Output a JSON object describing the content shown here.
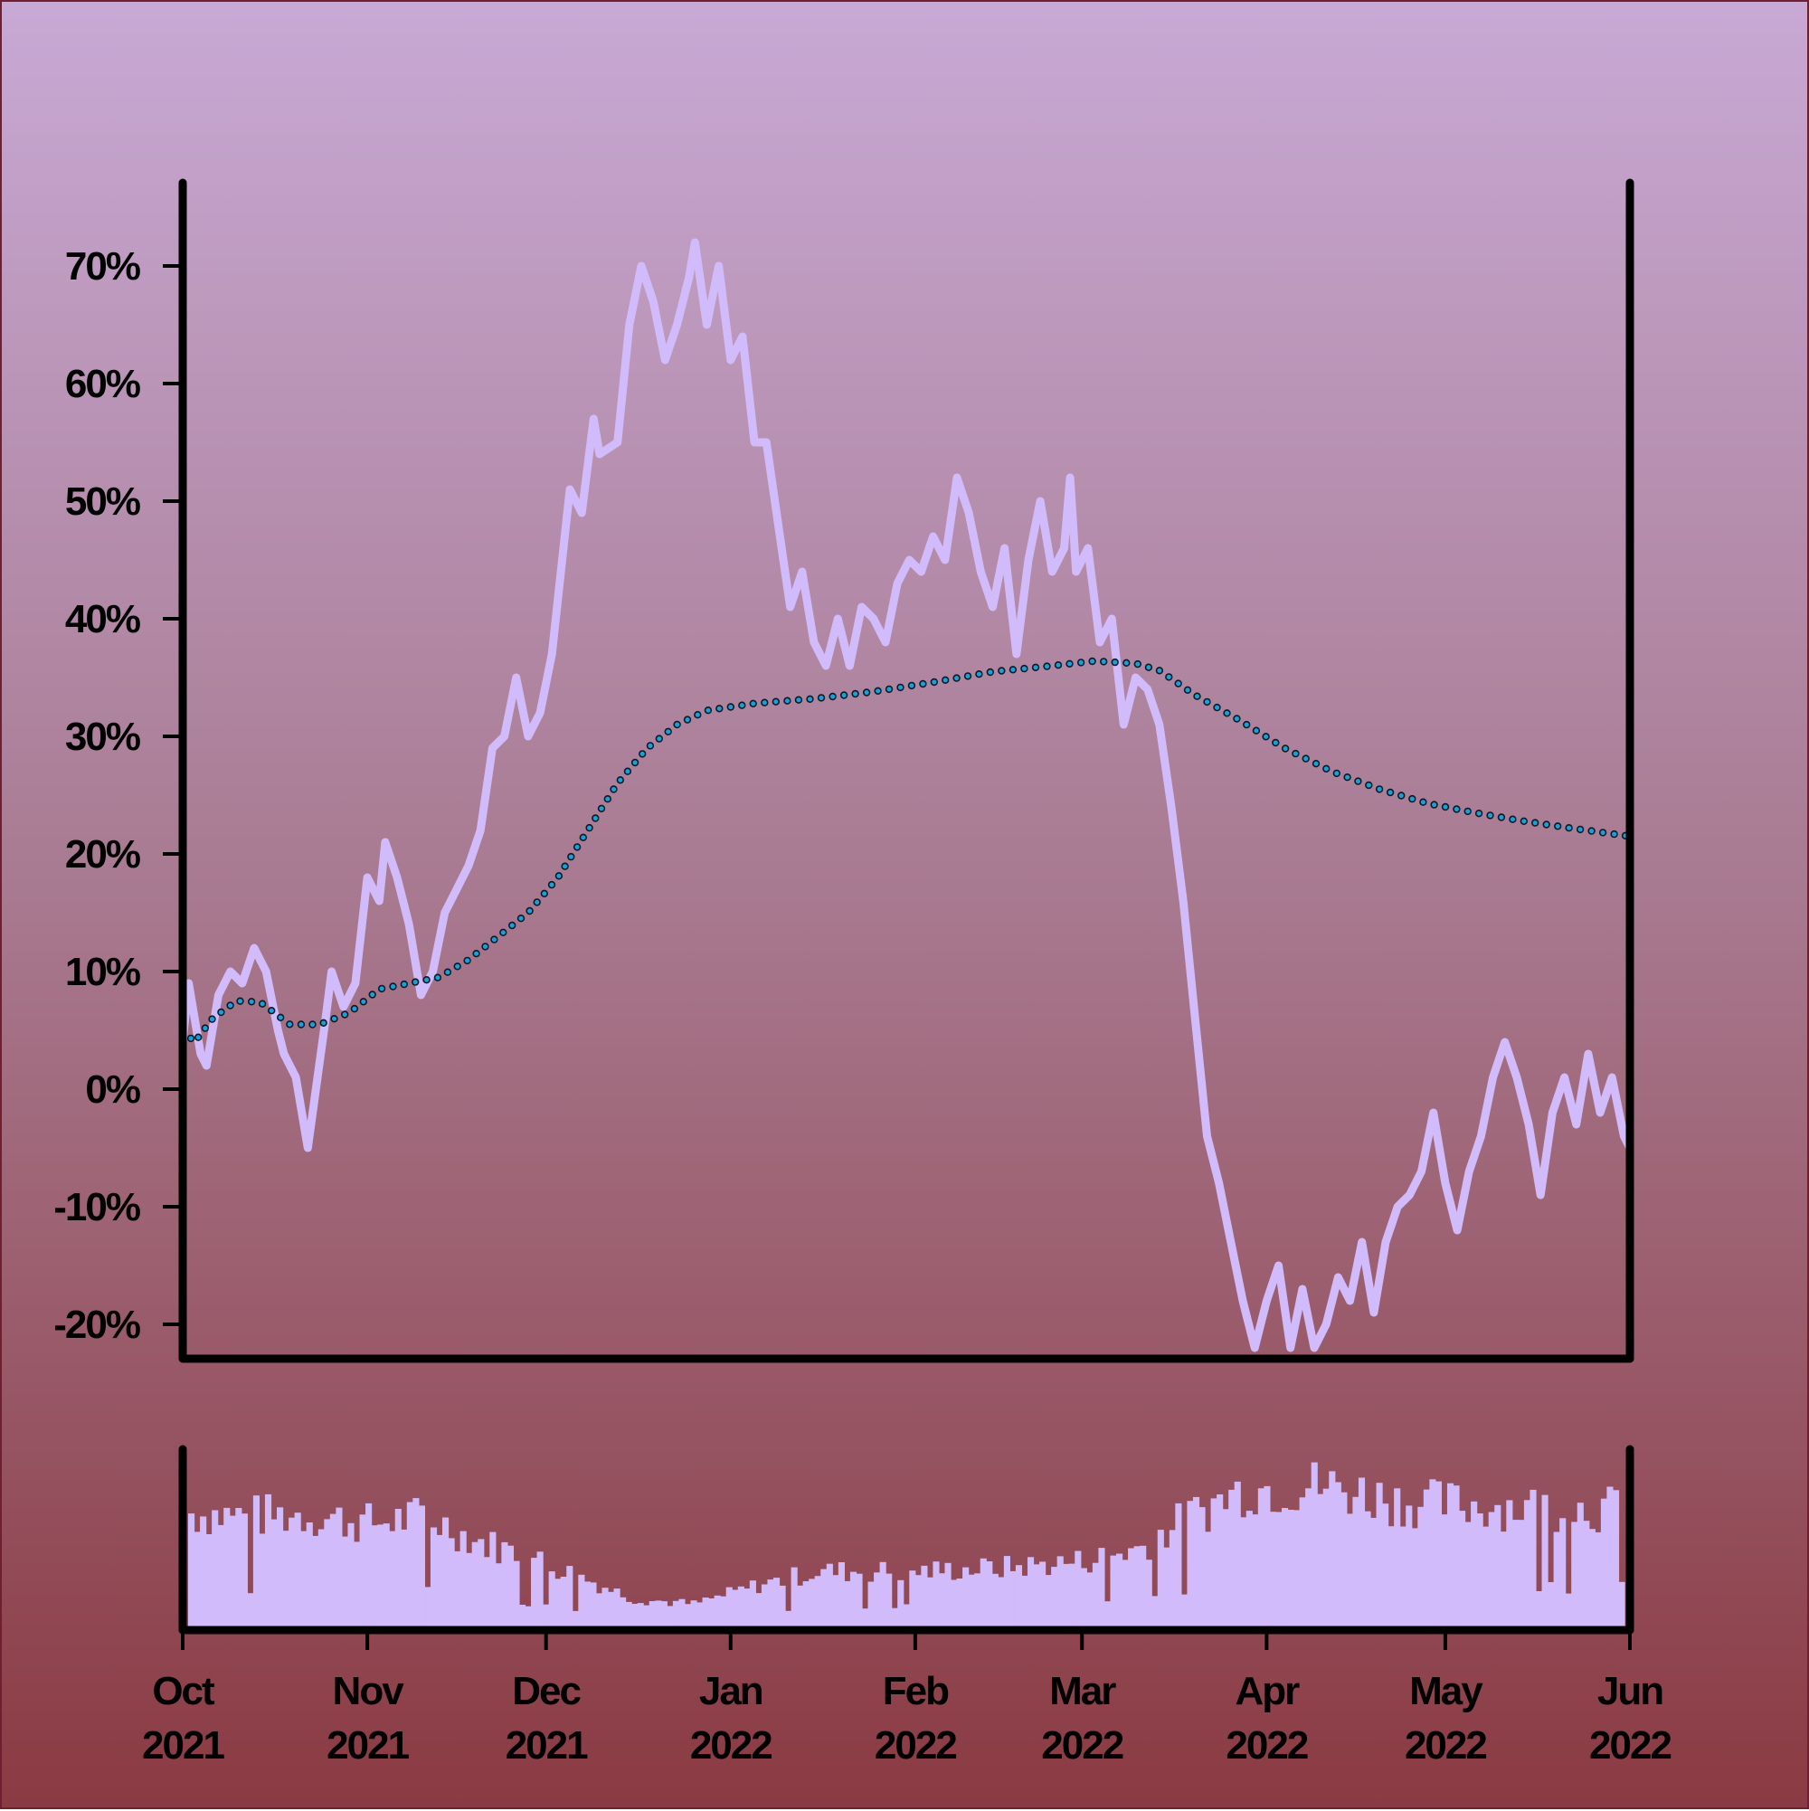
{
  "chart_data": [
    {
      "type": "line",
      "title": "",
      "xlabel": "",
      "ylabel": "",
      "x_range": [
        "2021-10-01",
        "2022-06-01"
      ],
      "ylim": [
        -22,
        77
      ],
      "y_ticks": [
        {
          "value": 70,
          "label": "70%"
        },
        {
          "value": 60,
          "label": "60%"
        },
        {
          "value": 50,
          "label": "50%"
        },
        {
          "value": 40,
          "label": "40%"
        },
        {
          "value": 30,
          "label": "30%"
        },
        {
          "value": 20,
          "label": "20%"
        },
        {
          "value": 10,
          "label": "10%"
        },
        {
          "value": 0,
          "label": "0%"
        },
        {
          "value": -10,
          "label": "-10%"
        },
        {
          "value": -20,
          "label": "-20%"
        }
      ],
      "grid": false,
      "series": [
        {
          "style": "solid",
          "color": "#d2bbfb",
          "points": [
            [
              "2021-10-01",
              4
            ],
            [
              "2021-10-02",
              9
            ],
            [
              "2021-10-03",
              6
            ],
            [
              "2021-10-04",
              3
            ],
            [
              "2021-10-05",
              2
            ],
            [
              "2021-10-07",
              8
            ],
            [
              "2021-10-09",
              10
            ],
            [
              "2021-10-11",
              9
            ],
            [
              "2021-10-13",
              12
            ],
            [
              "2021-10-15",
              10
            ],
            [
              "2021-10-17",
              5
            ],
            [
              "2021-10-18",
              3
            ],
            [
              "2021-10-20",
              1
            ],
            [
              "2021-10-22",
              -5
            ],
            [
              "2021-10-25",
              6
            ],
            [
              "2021-10-26",
              10
            ],
            [
              "2021-10-28",
              7
            ],
            [
              "2021-10-30",
              9
            ],
            [
              "2021-11-01",
              18
            ],
            [
              "2021-11-03",
              16
            ],
            [
              "2021-11-04",
              21
            ],
            [
              "2021-11-06",
              18
            ],
            [
              "2021-11-08",
              14
            ],
            [
              "2021-11-10",
              8
            ],
            [
              "2021-11-12",
              10
            ],
            [
              "2021-11-14",
              15
            ],
            [
              "2021-11-16",
              17
            ],
            [
              "2021-11-18",
              19
            ],
            [
              "2021-11-20",
              22
            ],
            [
              "2021-11-22",
              29
            ],
            [
              "2021-11-24",
              30
            ],
            [
              "2021-11-26",
              35
            ],
            [
              "2021-11-28",
              30
            ],
            [
              "2021-11-30",
              32
            ],
            [
              "2021-12-02",
              37
            ],
            [
              "2021-12-05",
              51
            ],
            [
              "2021-12-07",
              49
            ],
            [
              "2021-12-09",
              57
            ],
            [
              "2021-12-10",
              54
            ],
            [
              "2021-12-13",
              55
            ],
            [
              "2021-12-15",
              65
            ],
            [
              "2021-12-17",
              70
            ],
            [
              "2021-12-19",
              67
            ],
            [
              "2021-12-21",
              62
            ],
            [
              "2021-12-23",
              65
            ],
            [
              "2021-12-25",
              69
            ],
            [
              "2021-12-26",
              72
            ],
            [
              "2021-12-28",
              65
            ],
            [
              "2021-12-30",
              70
            ],
            [
              "2022-01-01",
              62
            ],
            [
              "2022-01-03",
              64
            ],
            [
              "2022-01-05",
              55
            ],
            [
              "2022-01-07",
              55
            ],
            [
              "2022-01-09",
              48
            ],
            [
              "2022-01-11",
              41
            ],
            [
              "2022-01-13",
              44
            ],
            [
              "2022-01-15",
              38
            ],
            [
              "2022-01-17",
              36
            ],
            [
              "2022-01-19",
              40
            ],
            [
              "2022-01-21",
              36
            ],
            [
              "2022-01-23",
              41
            ],
            [
              "2022-01-25",
              40
            ],
            [
              "2022-01-27",
              38
            ],
            [
              "2022-01-29",
              43
            ],
            [
              "2022-01-31",
              45
            ],
            [
              "2022-02-02",
              44
            ],
            [
              "2022-02-04",
              47
            ],
            [
              "2022-02-06",
              45
            ],
            [
              "2022-02-08",
              52
            ],
            [
              "2022-02-10",
              49
            ],
            [
              "2022-02-12",
              44
            ],
            [
              "2022-02-14",
              41
            ],
            [
              "2022-02-16",
              46
            ],
            [
              "2022-02-18",
              37
            ],
            [
              "2022-02-20",
              45
            ],
            [
              "2022-02-22",
              50
            ],
            [
              "2022-02-24",
              44
            ],
            [
              "2022-02-26",
              46
            ],
            [
              "2022-02-27",
              52
            ],
            [
              "2022-02-28",
              44
            ],
            [
              "2022-03-02",
              46
            ],
            [
              "2022-03-04",
              38
            ],
            [
              "2022-03-06",
              40
            ],
            [
              "2022-03-08",
              31
            ],
            [
              "2022-03-10",
              35
            ],
            [
              "2022-03-12",
              34
            ],
            [
              "2022-03-14",
              31
            ],
            [
              "2022-03-16",
              24
            ],
            [
              "2022-03-18",
              16
            ],
            [
              "2022-03-20",
              6
            ],
            [
              "2022-03-22",
              -4
            ],
            [
              "2022-03-24",
              -8
            ],
            [
              "2022-03-26",
              -13
            ],
            [
              "2022-03-28",
              -18
            ],
            [
              "2022-03-30",
              -22
            ],
            [
              "2022-04-01",
              -18
            ],
            [
              "2022-04-03",
              -15
            ],
            [
              "2022-04-05",
              -22
            ],
            [
              "2022-04-07",
              -17
            ],
            [
              "2022-04-09",
              -22
            ],
            [
              "2022-04-11",
              -20
            ],
            [
              "2022-04-13",
              -16
            ],
            [
              "2022-04-15",
              -18
            ],
            [
              "2022-04-17",
              -13
            ],
            [
              "2022-04-19",
              -19
            ],
            [
              "2022-04-21",
              -13
            ],
            [
              "2022-04-23",
              -10
            ],
            [
              "2022-04-25",
              -9
            ],
            [
              "2022-04-27",
              -7
            ],
            [
              "2022-04-29",
              -2
            ],
            [
              "2022-05-01",
              -8
            ],
            [
              "2022-05-03",
              -12
            ],
            [
              "2022-05-05",
              -7
            ],
            [
              "2022-05-07",
              -4
            ],
            [
              "2022-05-09",
              1
            ],
            [
              "2022-05-11",
              4
            ],
            [
              "2022-05-13",
              1
            ],
            [
              "2022-05-15",
              -3
            ],
            [
              "2022-05-17",
              -9
            ],
            [
              "2022-05-19",
              -2
            ],
            [
              "2022-05-21",
              1
            ],
            [
              "2022-05-23",
              -3
            ],
            [
              "2022-05-25",
              3
            ],
            [
              "2022-05-27",
              -2
            ],
            [
              "2022-05-29",
              1
            ],
            [
              "2022-05-31",
              -4
            ],
            [
              "2022-06-01",
              -5
            ]
          ]
        },
        {
          "style": "dotted",
          "color": "#1aa0d8",
          "points": [
            [
              "2021-10-01",
              5
            ],
            [
              "2021-10-03",
              4
            ],
            [
              "2021-10-06",
              6
            ],
            [
              "2021-10-10",
              7.5
            ],
            [
              "2021-10-14",
              7.4
            ],
            [
              "2021-10-19",
              5.5
            ],
            [
              "2021-10-24",
              5.5
            ],
            [
              "2021-10-29",
              6.5
            ],
            [
              "2021-11-03",
              8.5
            ],
            [
              "2021-11-08",
              9
            ],
            [
              "2021-11-13",
              9.5
            ],
            [
              "2021-11-18",
              11
            ],
            [
              "2021-11-23",
              13
            ],
            [
              "2021-11-28",
              15
            ],
            [
              "2021-12-03",
              18
            ],
            [
              "2021-12-08",
              22
            ],
            [
              "2021-12-13",
              26
            ],
            [
              "2021-12-18",
              29
            ],
            [
              "2021-12-23",
              31
            ],
            [
              "2021-12-28",
              32.2
            ],
            [
              "2022-01-05",
              32.8
            ],
            [
              "2022-01-15",
              33.2
            ],
            [
              "2022-01-25",
              33.8
            ],
            [
              "2022-02-04",
              34.6
            ],
            [
              "2022-02-14",
              35.5
            ],
            [
              "2022-02-24",
              36
            ],
            [
              "2022-03-03",
              36.4
            ],
            [
              "2022-03-10",
              36.2
            ],
            [
              "2022-03-14",
              35.6
            ],
            [
              "2022-03-20",
              33.5
            ],
            [
              "2022-03-27",
              31.5
            ],
            [
              "2022-04-04",
              29
            ],
            [
              "2022-04-12",
              27
            ],
            [
              "2022-04-20",
              25.5
            ],
            [
              "2022-04-28",
              24.3
            ],
            [
              "2022-05-06",
              23.5
            ],
            [
              "2022-05-14",
              22.8
            ],
            [
              "2022-05-22",
              22.2
            ],
            [
              "2022-06-01",
              21.5
            ]
          ]
        }
      ]
    },
    {
      "type": "bar",
      "title": "",
      "xlabel": "",
      "ylabel": "",
      "x_range": [
        "2021-10-01",
        "2022-06-01"
      ],
      "ylim": [
        0,
        1
      ],
      "color": "#d2bbfb",
      "x_ticks": [
        {
          "date": "2021-10-01",
          "month": "Oct",
          "year": "2021"
        },
        {
          "date": "2021-11-01",
          "month": "Nov",
          "year": "2021"
        },
        {
          "date": "2021-12-01",
          "month": "Dec",
          "year": "2021"
        },
        {
          "date": "2022-01-01",
          "month": "Jan",
          "year": "2022"
        },
        {
          "date": "2022-02-01",
          "month": "Feb",
          "year": "2022"
        },
        {
          "date": "2022-03-01",
          "month": "Mar",
          "year": "2022"
        },
        {
          "date": "2022-04-01",
          "month": "Apr",
          "year": "2022"
        },
        {
          "date": "2022-05-01",
          "month": "May",
          "year": "2022"
        },
        {
          "date": "2022-06-01",
          "month": "Jun",
          "year": "2022"
        }
      ],
      "volume_profile": [
        [
          "2021-10-01",
          0.66
        ],
        [
          "2021-10-10",
          0.64
        ],
        [
          "2021-10-20",
          0.65
        ],
        [
          "2021-10-31",
          0.6
        ],
        [
          "2021-11-10",
          0.64
        ],
        [
          "2021-11-18",
          0.5
        ],
        [
          "2021-11-26",
          0.42
        ],
        [
          "2021-12-05",
          0.3
        ],
        [
          "2021-12-15",
          0.16
        ],
        [
          "2021-12-25",
          0.13
        ],
        [
          "2022-01-05",
          0.24
        ],
        [
          "2022-01-15",
          0.32
        ],
        [
          "2022-02-01",
          0.32
        ],
        [
          "2022-02-15",
          0.34
        ],
        [
          "2022-03-01",
          0.38
        ],
        [
          "2022-03-10",
          0.45
        ],
        [
          "2022-03-18",
          0.62
        ],
        [
          "2022-03-28",
          0.8
        ],
        [
          "2022-04-10",
          0.82
        ],
        [
          "2022-04-25",
          0.72
        ],
        [
          "2022-05-10",
          0.7
        ],
        [
          "2022-06-01",
          0.68
        ]
      ]
    }
  ]
}
